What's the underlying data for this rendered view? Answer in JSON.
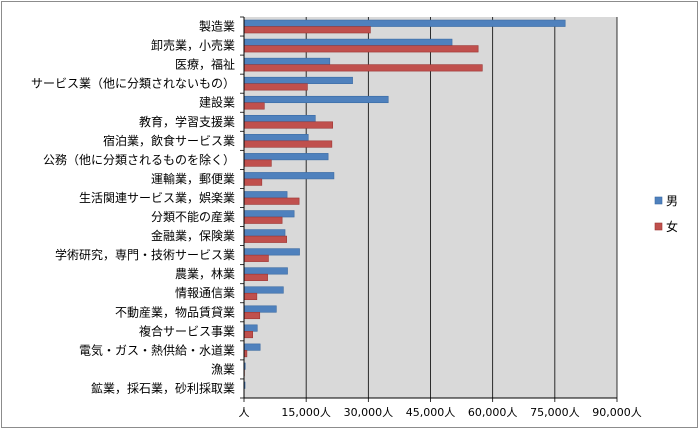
{
  "chart_data": {
    "type": "bar",
    "orientation": "horizontal",
    "categories": [
      "製造業",
      "卸売業，小売業",
      "医療，福祉",
      "サービス業（他に分類されないもの）",
      "建設業",
      "教育，学習支援業",
      "宿泊業，飲食サービス業",
      "公務（他に分類されるものを除く）",
      "運輸業，郵便業",
      "生活関連サービス業，娯楽業",
      "分類不能の産業",
      "金融業，保険業",
      "学術研究，専門・技術サービス業",
      "農業，林業",
      "情報通信業",
      "不動産業，物品賃貸業",
      "複合サービス事業",
      "電気・ガス・熱供給・水道業",
      "漁業",
      "鉱業，採石業，砂利採取業"
    ],
    "series": [
      {
        "name": "男",
        "color": "#4f81bd",
        "values": [
          77500,
          50200,
          20700,
          26200,
          34800,
          17200,
          15500,
          20300,
          21700,
          10400,
          12100,
          9900,
          13400,
          10500,
          9500,
          7800,
          3200,
          3900,
          300,
          250
        ]
      },
      {
        "name": "女",
        "color": "#c0504d",
        "values": [
          30500,
          56500,
          57500,
          15300,
          4900,
          21400,
          21200,
          6600,
          4300,
          13300,
          9200,
          10300,
          5900,
          5700,
          3100,
          3800,
          2100,
          700,
          100,
          50
        ]
      }
    ],
    "xlim": [
      0,
      90000
    ],
    "xticks": [
      "人",
      "15,000人",
      "30,000人",
      "45,000人",
      "60,000人",
      "75,000人",
      "90,000人"
    ],
    "grid": true,
    "legend_position": "right",
    "plot_background": "#d9d9d9"
  }
}
